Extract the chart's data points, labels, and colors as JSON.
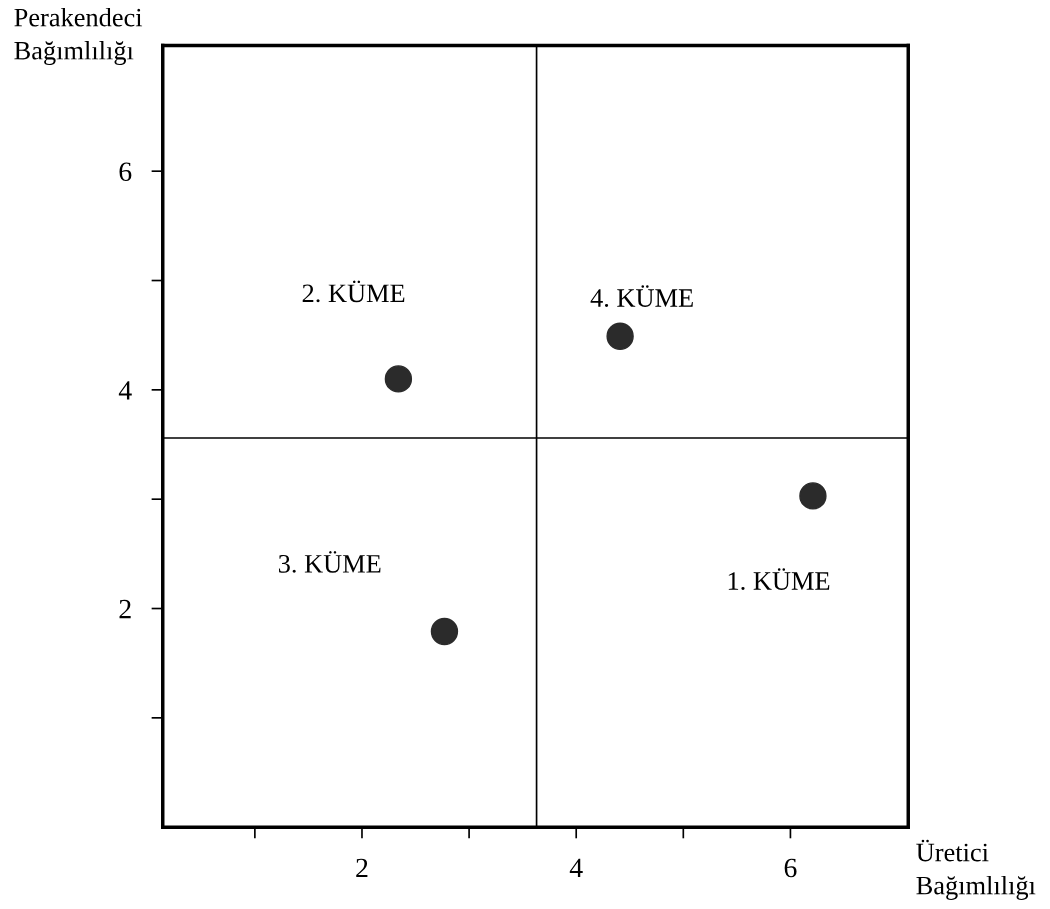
{
  "chart_data": {
    "type": "scatter",
    "xlabel": "Üretici\nBağımlılığı",
    "ylabel": "Perakendeci\nBağımlılığı",
    "x": [
      2.34,
      4.41,
      6.21,
      2.77
    ],
    "series": [
      {
        "color": "#2b2b2b",
        "values": [
          4.1,
          4.49,
          3.03,
          1.79
        ]
      }
    ],
    "xlim": [
      0.14,
      7.1
    ],
    "ylim": [
      0,
      7.15
    ],
    "xticks": [
      {
        "value": 1,
        "label": null
      },
      2,
      {
        "value": 3,
        "label": null
      },
      4,
      {
        "value": 5,
        "label": null
      },
      6
    ],
    "yticks": [
      {
        "value": 1,
        "label": null
      },
      2,
      {
        "value": 3,
        "label": null
      },
      4,
      {
        "value": 5,
        "label": null
      },
      6
    ],
    "ref_lines": [
      {
        "axis": "x",
        "value": 3.63,
        "color": "#000000"
      },
      {
        "axis": "y",
        "value": 3.56,
        "color": "#000000"
      }
    ],
    "annotations": [
      "2. KÜME",
      "4. KÜME",
      "3. KÜME",
      "1. KÜME"
    ],
    "marker": "circle",
    "grid": false,
    "legend": false
  }
}
